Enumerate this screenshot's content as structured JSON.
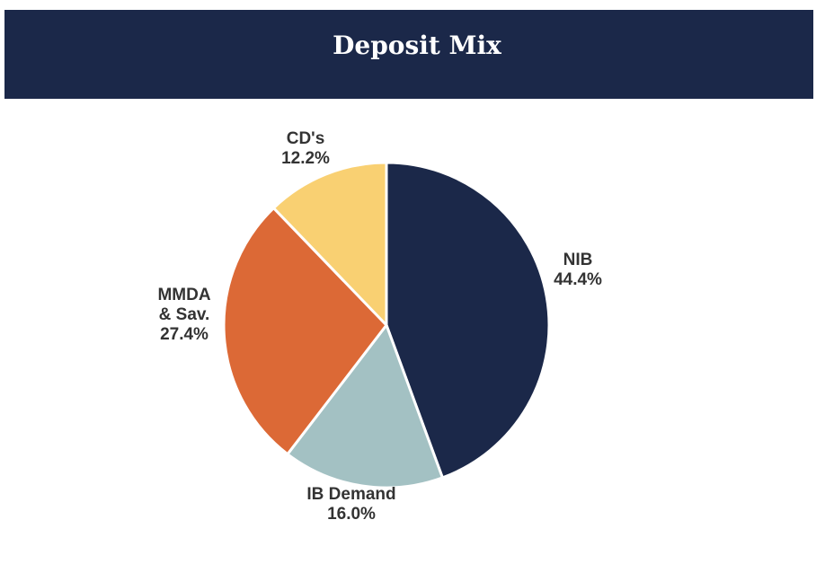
{
  "header": {
    "title": "Deposit Mix"
  },
  "chart_data": {
    "type": "pie",
    "title": "Deposit Mix",
    "categories": [
      "NIB",
      "IB Demand",
      "MMDA & Sav.",
      "CD's"
    ],
    "values": [
      44.4,
      16.0,
      27.4,
      12.2
    ],
    "value_labels": [
      "44.4%",
      "16.0%",
      "27.4%",
      "12.2%"
    ],
    "label_lines": [
      [
        "NIB",
        "44.4%"
      ],
      [
        "IB Demand",
        "16.0%"
      ],
      [
        "MMDA",
        "& Sav.",
        "27.4%"
      ],
      [
        "CD's",
        "12.2%"
      ]
    ],
    "start": "12 o'clock",
    "direction": "clockwise",
    "colors": [
      "#1b2849",
      "#a3c1c3",
      "#dc6936",
      "#f9d072"
    ],
    "legend": "none"
  }
}
